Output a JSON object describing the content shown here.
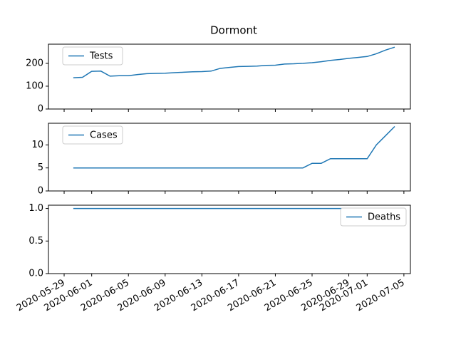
{
  "chart_data": {
    "type": "line",
    "title": "Dormont",
    "x": [
      "2020-05-30",
      "2020-05-31",
      "2020-06-01",
      "2020-06-02",
      "2020-06-03",
      "2020-06-04",
      "2020-06-05",
      "2020-06-06",
      "2020-06-07",
      "2020-06-08",
      "2020-06-09",
      "2020-06-10",
      "2020-06-11",
      "2020-06-12",
      "2020-06-13",
      "2020-06-14",
      "2020-06-15",
      "2020-06-16",
      "2020-06-17",
      "2020-06-18",
      "2020-06-19",
      "2020-06-20",
      "2020-06-21",
      "2020-06-22",
      "2020-06-23",
      "2020-06-24",
      "2020-06-25",
      "2020-06-26",
      "2020-06-27",
      "2020-06-28",
      "2020-06-29",
      "2020-06-30",
      "2020-07-01",
      "2020-07-02",
      "2020-07-03",
      "2020-07-04"
    ],
    "xlim": [
      "2020-05-27T07:00",
      "2020-07-05T17:00"
    ],
    "xticks": [
      "2020-05-29",
      "2020-06-01",
      "2020-06-05",
      "2020-06-09",
      "2020-06-13",
      "2020-06-17",
      "2020-06-21",
      "2020-06-25",
      "2020-06-29",
      "2020-07-01",
      "2020-07-05"
    ],
    "panels": [
      {
        "ylim": [
          0,
          284
        ],
        "yticks": [
          0,
          100,
          200
        ],
        "legend": "upper left",
        "series": [
          {
            "name": "Tests",
            "color": "#1f77b4",
            "values": [
              137,
              139,
              165,
              166,
              144,
              146,
              146,
              151,
              155,
              156,
              157,
              159,
              161,
              163,
              164,
              166,
              178,
              182,
              186,
              187,
              188,
              191,
              192,
              197,
              198,
              200,
              203,
              207,
              213,
              217,
              222,
              226,
              230,
              242,
              258,
              271
            ]
          }
        ]
      },
      {
        "ylim": [
          0,
          14.7
        ],
        "yticks": [
          0,
          5,
          10
        ],
        "legend": "upper left",
        "series": [
          {
            "name": "Cases",
            "color": "#1f77b4",
            "values": [
              5,
              5,
              5,
              5,
              5,
              5,
              5,
              5,
              5,
              5,
              5,
              5,
              5,
              5,
              5,
              5,
              5,
              5,
              5,
              5,
              5,
              5,
              5,
              5,
              5,
              5,
              6,
              6,
              7,
              7,
              7,
              7,
              7,
              10,
              12,
              14
            ]
          }
        ]
      },
      {
        "ylim": [
          0,
          1.05
        ],
        "yticks": [
          {
            "value": 0,
            "label": "0.0"
          },
          {
            "value": 0.5,
            "label": "0.5"
          },
          {
            "value": 1,
            "label": "1.0"
          }
        ],
        "legend": "upper right",
        "series": [
          {
            "name": "Deaths",
            "color": "#1f77b4",
            "values": [
              1,
              1,
              1,
              1,
              1,
              1,
              1,
              1,
              1,
              1,
              1,
              1,
              1,
              1,
              1,
              1,
              1,
              1,
              1,
              1,
              1,
              1,
              1,
              1,
              1,
              1,
              1,
              1,
              1,
              1,
              1,
              1,
              1,
              1,
              1,
              1
            ]
          }
        ]
      }
    ]
  }
}
